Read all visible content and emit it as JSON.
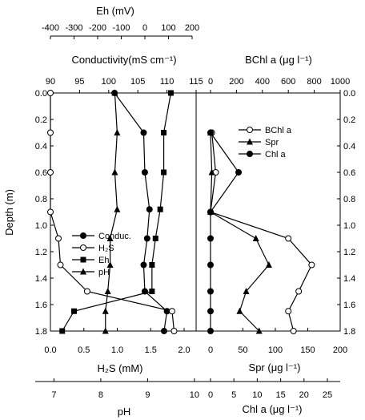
{
  "chart_data": {
    "type": "line",
    "depth_axis": {
      "label": "Depth (m)",
      "range": [
        0.0,
        1.8
      ],
      "ticks": [
        "0.0",
        "0.2",
        "0.4",
        "0.6",
        "0.8",
        "1.0",
        "1.2",
        "1.4",
        "1.6",
        "1.8"
      ]
    },
    "left_panel": {
      "axes": {
        "eh": {
          "label": "Eh (mV)",
          "range": [
            -400,
            200
          ],
          "ticks": [
            "-400",
            "-300",
            "-200",
            "-100",
            "0",
            "100",
            "200"
          ]
        },
        "cond": {
          "label": "Conductivity(mS cm⁻¹)",
          "range": [
            90,
            115
          ],
          "ticks": [
            "90",
            "95",
            "100",
            "105",
            "110",
            "115"
          ]
        },
        "h2s": {
          "label": "H₂S (mM)",
          "range": [
            0.0,
            2.0
          ],
          "ticks": [
            "0.0",
            "0.5",
            "1.0",
            "1.5",
            "2.0"
          ]
        },
        "ph": {
          "label": "pH",
          "range": [
            6.6,
            10.6
          ],
          "ticks": [
            "7",
            "8",
            "9",
            "10"
          ]
        }
      },
      "series": [
        {
          "name": "Conduc.",
          "marker": "filled-circle",
          "axis": "cond",
          "depth": [
            0.0,
            0.3,
            0.6,
            0.88,
            1.1,
            1.3,
            1.5,
            1.65,
            1.8
          ],
          "values": [
            101,
            106,
            106.2,
            107,
            106.6,
            106,
            106.2,
            110,
            109.5
          ]
        },
        {
          "name": "H₂S",
          "marker": "open-circle",
          "axis": "h2s",
          "depth": [
            0.0,
            0.3,
            0.6,
            0.9,
            1.1,
            1.3,
            1.5,
            1.65,
            1.8
          ],
          "values": [
            0.0,
            0.0,
            0.0,
            0.0,
            0.12,
            0.15,
            0.55,
            1.82,
            1.85
          ]
        },
        {
          "name": "Eh",
          "marker": "filled-square",
          "axis": "eh",
          "depth": [
            0.0,
            0.3,
            0.6,
            0.88,
            1.1,
            1.3,
            1.5,
            1.65,
            1.8
          ],
          "values": [
            110,
            80,
            80,
            65,
            45,
            30,
            30,
            -300,
            -350
          ]
        },
        {
          "name": "pH",
          "marker": "filled-triangle",
          "axis": "ph",
          "depth": [
            0.0,
            0.3,
            0.6,
            0.88,
            1.1,
            1.3,
            1.5,
            1.65,
            1.8
          ],
          "values": [
            8.3,
            8.35,
            8.3,
            8.35,
            8.2,
            8.2,
            8.15,
            8.1,
            8.1
          ]
        }
      ]
    },
    "right_panel": {
      "axes": {
        "bchl": {
          "label": "BChl a (μg l⁻¹)",
          "range": [
            0,
            1000
          ],
          "ticks": [
            "0",
            "200",
            "400",
            "600",
            "800",
            "1000"
          ]
        },
        "spr": {
          "label": "Spr (μg l⁻¹)",
          "range": [
            -10,
            200
          ],
          "ticks": [
            "0",
            "50",
            "100",
            "150",
            "200"
          ]
        },
        "chla": {
          "label": "Chl a (μg l⁻¹)",
          "range": [
            -1,
            25
          ],
          "ticks": [
            "0",
            "5",
            "10",
            "15",
            "20",
            "25"
          ]
        }
      },
      "series": [
        {
          "name": "BChl a",
          "marker": "open-circle",
          "axis": "bchl",
          "depth": [
            0.3,
            0.6,
            0.9,
            1.1,
            1.3,
            1.5,
            1.65,
            1.8
          ],
          "values": [
            10,
            40,
            0,
            600,
            780,
            680,
            600,
            640
          ]
        },
        {
          "name": "Spr",
          "marker": "filled-triangle",
          "axis": "spr",
          "depth": [
            0.3,
            0.6,
            0.9,
            1.1,
            1.3,
            1.5,
            1.65,
            1.8
          ],
          "values": [
            0,
            2,
            0,
            70,
            90,
            55,
            45,
            75
          ]
        },
        {
          "name": "Chl a",
          "marker": "filled-circle",
          "axis": "chla",
          "depth": [
            0.3,
            0.6,
            0.9,
            1.1,
            1.3,
            1.5,
            1.65,
            1.8
          ],
          "values": [
            0,
            6,
            0,
            0,
            0,
            0,
            0,
            0
          ]
        }
      ]
    }
  }
}
